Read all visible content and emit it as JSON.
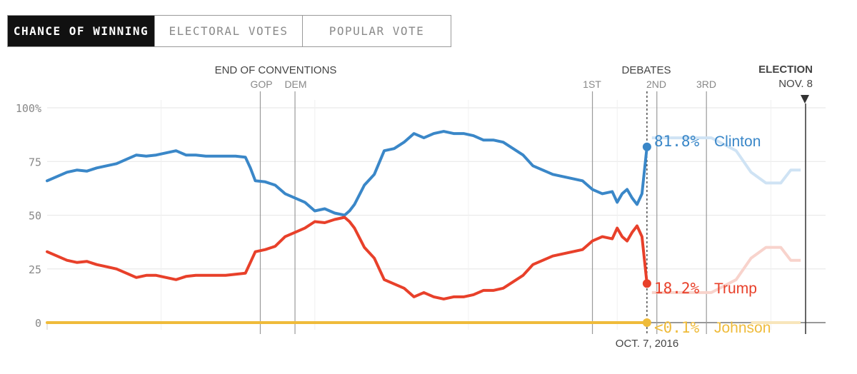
{
  "tabs": [
    {
      "label": "CHANCE OF WINNING",
      "active": true
    },
    {
      "label": "ELECTORAL VOTES",
      "active": false
    },
    {
      "label": "POPULAR VOTE",
      "active": false
    }
  ],
  "annotations": {
    "conventions": "END OF CONVENTIONS",
    "gop": "GOP",
    "dem": "DEM",
    "debates": "DEBATES",
    "first": "1ST",
    "second": "2ND",
    "third": "3RD",
    "election": "ELECTION",
    "election_date": "NOV. 8",
    "current_date": "OCT. 7, 2016"
  },
  "colors": {
    "clinton": "#3a87c8",
    "trump": "#e8402a",
    "johnson": "#efbb3a",
    "grid": "#e6e6e6",
    "event": "#9a9a9a"
  },
  "chart_data": {
    "type": "line",
    "ylim": [
      0,
      100
    ],
    "yticks": [
      "100%",
      "75",
      "50",
      "25",
      "0"
    ],
    "x_range": [
      "2016-06-08",
      "2016-11-08"
    ],
    "events": [
      {
        "name": "GOP",
        "date": "2016-07-21"
      },
      {
        "name": "DEM",
        "date": "2016-07-28"
      },
      {
        "name": "1ST",
        "date": "2016-09-26"
      },
      {
        "name": "2ND",
        "date": "2016-10-09"
      },
      {
        "name": "3RD",
        "date": "2016-10-19"
      },
      {
        "name": "ELECTION",
        "date": "2016-11-08"
      }
    ],
    "current_date": "2016-10-07",
    "series": [
      {
        "name": "Clinton",
        "end_label": "81.8%",
        "values": [
          [
            "2016-06-08",
            66
          ],
          [
            "2016-06-10",
            68
          ],
          [
            "2016-06-12",
            70
          ],
          [
            "2016-06-14",
            71
          ],
          [
            "2016-06-16",
            70.5
          ],
          [
            "2016-06-18",
            72
          ],
          [
            "2016-06-20",
            73
          ],
          [
            "2016-06-22",
            74
          ],
          [
            "2016-06-24",
            76
          ],
          [
            "2016-06-26",
            78
          ],
          [
            "2016-06-28",
            77.5
          ],
          [
            "2016-06-30",
            78
          ],
          [
            "2016-07-02",
            79
          ],
          [
            "2016-07-04",
            80
          ],
          [
            "2016-07-06",
            78
          ],
          [
            "2016-07-08",
            78
          ],
          [
            "2016-07-10",
            77.5
          ],
          [
            "2016-07-12",
            77.5
          ],
          [
            "2016-07-14",
            77.5
          ],
          [
            "2016-07-16",
            77.5
          ],
          [
            "2016-07-18",
            77
          ],
          [
            "2016-07-19",
            72
          ],
          [
            "2016-07-20",
            66
          ],
          [
            "2016-07-22",
            65.5
          ],
          [
            "2016-07-24",
            64
          ],
          [
            "2016-07-26",
            60
          ],
          [
            "2016-07-28",
            58
          ],
          [
            "2016-07-30",
            56
          ],
          [
            "2016-08-01",
            52
          ],
          [
            "2016-08-03",
            53
          ],
          [
            "2016-08-05",
            51
          ],
          [
            "2016-08-07",
            50
          ],
          [
            "2016-08-08",
            52
          ],
          [
            "2016-08-09",
            55
          ],
          [
            "2016-08-11",
            64
          ],
          [
            "2016-08-13",
            69
          ],
          [
            "2016-08-15",
            80
          ],
          [
            "2016-08-17",
            81
          ],
          [
            "2016-08-19",
            84
          ],
          [
            "2016-08-21",
            88
          ],
          [
            "2016-08-23",
            86
          ],
          [
            "2016-08-25",
            88
          ],
          [
            "2016-08-27",
            89
          ],
          [
            "2016-08-29",
            88
          ],
          [
            "2016-08-31",
            88
          ],
          [
            "2016-09-02",
            87
          ],
          [
            "2016-09-04",
            85
          ],
          [
            "2016-09-06",
            85
          ],
          [
            "2016-09-08",
            84
          ],
          [
            "2016-09-10",
            81
          ],
          [
            "2016-09-12",
            78
          ],
          [
            "2016-09-14",
            73
          ],
          [
            "2016-09-16",
            71
          ],
          [
            "2016-09-18",
            69
          ],
          [
            "2016-09-20",
            68
          ],
          [
            "2016-09-22",
            67
          ],
          [
            "2016-09-24",
            66
          ],
          [
            "2016-09-26",
            62
          ],
          [
            "2016-09-28",
            60
          ],
          [
            "2016-09-30",
            61
          ],
          [
            "2016-10-01",
            56
          ],
          [
            "2016-10-02",
            60
          ],
          [
            "2016-10-03",
            62
          ],
          [
            "2016-10-04",
            58
          ],
          [
            "2016-10-05",
            55
          ],
          [
            "2016-10-06",
            60
          ],
          [
            "2016-10-07",
            81.8
          ]
        ]
      },
      {
        "name": "Trump",
        "end_label": "18.2%",
        "values": [
          [
            "2016-06-08",
            33
          ],
          [
            "2016-06-10",
            31
          ],
          [
            "2016-06-12",
            29
          ],
          [
            "2016-06-14",
            28
          ],
          [
            "2016-06-16",
            28.5
          ],
          [
            "2016-06-18",
            27
          ],
          [
            "2016-06-20",
            26
          ],
          [
            "2016-06-22",
            25
          ],
          [
            "2016-06-24",
            23
          ],
          [
            "2016-06-26",
            21
          ],
          [
            "2016-06-28",
            22
          ],
          [
            "2016-06-30",
            22
          ],
          [
            "2016-07-02",
            21
          ],
          [
            "2016-07-04",
            20
          ],
          [
            "2016-07-06",
            21.5
          ],
          [
            "2016-07-08",
            22
          ],
          [
            "2016-07-10",
            22
          ],
          [
            "2016-07-12",
            22
          ],
          [
            "2016-07-14",
            22
          ],
          [
            "2016-07-16",
            22.5
          ],
          [
            "2016-07-18",
            23
          ],
          [
            "2016-07-19",
            28
          ],
          [
            "2016-07-20",
            33
          ],
          [
            "2016-07-22",
            34
          ],
          [
            "2016-07-24",
            35.5
          ],
          [
            "2016-07-26",
            40
          ],
          [
            "2016-07-28",
            42
          ],
          [
            "2016-07-30",
            44
          ],
          [
            "2016-08-01",
            47
          ],
          [
            "2016-08-03",
            46.5
          ],
          [
            "2016-08-05",
            48
          ],
          [
            "2016-08-07",
            49
          ],
          [
            "2016-08-08",
            47
          ],
          [
            "2016-08-09",
            44
          ],
          [
            "2016-08-11",
            35
          ],
          [
            "2016-08-13",
            30
          ],
          [
            "2016-08-15",
            20
          ],
          [
            "2016-08-17",
            18
          ],
          [
            "2016-08-19",
            16
          ],
          [
            "2016-08-21",
            12
          ],
          [
            "2016-08-23",
            14
          ],
          [
            "2016-08-25",
            12
          ],
          [
            "2016-08-27",
            11
          ],
          [
            "2016-08-29",
            12
          ],
          [
            "2016-08-31",
            12
          ],
          [
            "2016-09-02",
            13
          ],
          [
            "2016-09-04",
            15
          ],
          [
            "2016-09-06",
            15
          ],
          [
            "2016-09-08",
            16
          ],
          [
            "2016-09-10",
            19
          ],
          [
            "2016-09-12",
            22
          ],
          [
            "2016-09-14",
            27
          ],
          [
            "2016-09-16",
            29
          ],
          [
            "2016-09-18",
            31
          ],
          [
            "2016-09-20",
            32
          ],
          [
            "2016-09-22",
            33
          ],
          [
            "2016-09-24",
            34
          ],
          [
            "2016-09-26",
            38
          ],
          [
            "2016-09-28",
            40
          ],
          [
            "2016-09-30",
            39
          ],
          [
            "2016-10-01",
            44
          ],
          [
            "2016-10-02",
            40
          ],
          [
            "2016-10-03",
            38
          ],
          [
            "2016-10-04",
            42
          ],
          [
            "2016-10-05",
            45
          ],
          [
            "2016-10-06",
            40
          ],
          [
            "2016-10-07",
            18.2
          ]
        ]
      },
      {
        "name": "Johnson",
        "end_label": "<0.1%",
        "values": [
          [
            "2016-06-08",
            0
          ],
          [
            "2016-10-07",
            0
          ]
        ]
      }
    ]
  }
}
